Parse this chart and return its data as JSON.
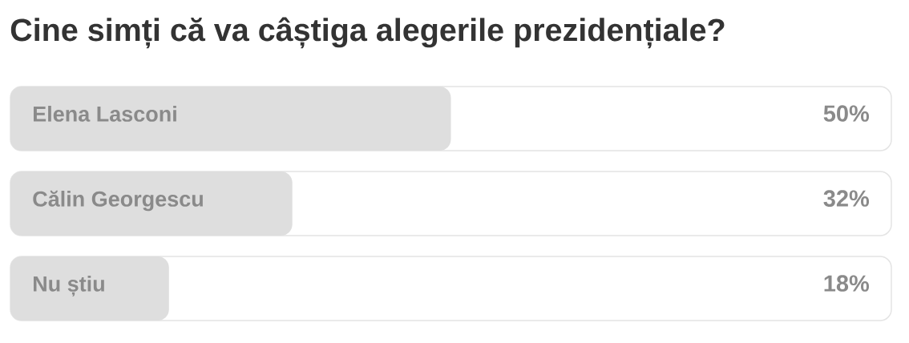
{
  "chart_data": {
    "type": "bar",
    "title": "Cine simți că va câștiga alegerile prezidențiale?",
    "orientation": "horizontal",
    "categories": [
      "Elena Lasconi",
      "Călin Georgescu",
      "Nu știu"
    ],
    "values": [
      50,
      32,
      18
    ],
    "color": "#dedede",
    "xlim": [
      0,
      100
    ],
    "value_labels": [
      "50%",
      "32%",
      "18%"
    ],
    "tick_labels": "y"
  }
}
